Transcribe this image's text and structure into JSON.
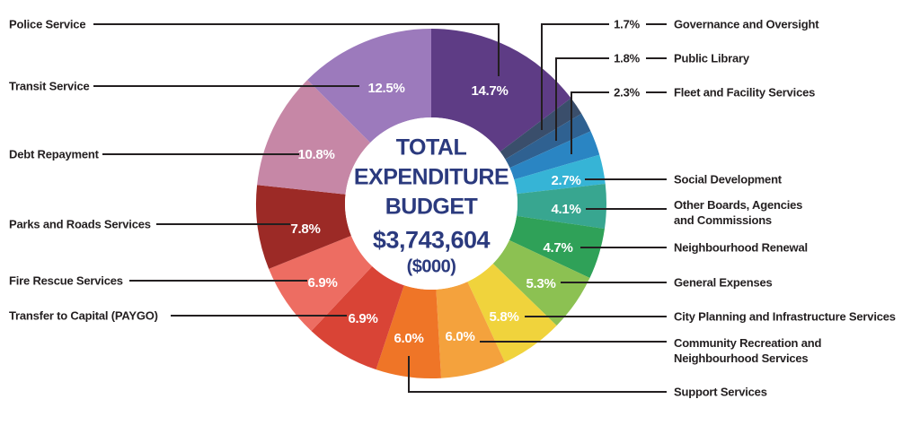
{
  "colors": {
    "background": "#FFFFFF",
    "leader_line": "#231F20",
    "label_text": "#231F20",
    "center_text": "#2B3A7E",
    "inner_pct_text": "#FFFFFF"
  },
  "center": {
    "title_lines": [
      "TOTAL",
      "EXPENDITURE",
      "BUDGET"
    ],
    "amount": "$3,743,604",
    "unit": "($000)"
  },
  "chart_data": {
    "type": "pie",
    "subtype": "donut",
    "direction": "clockwise",
    "start_angle_deg": 0,
    "title": "TOTAL EXPENDITURE BUDGET",
    "total": "$3,743,604",
    "unit": "($000)",
    "slices": [
      {
        "label": "Police Service",
        "value": 14.7,
        "display": "14.7%",
        "color": "#5E3C85"
      },
      {
        "label": "Governance and Oversight",
        "value": 1.7,
        "display": "1.7%",
        "color": "#3A4E6B"
      },
      {
        "label": "Public Library",
        "value": 1.8,
        "display": "1.8%",
        "color": "#2F6191"
      },
      {
        "label": "Fleet and Facility Services",
        "value": 2.3,
        "display": "2.3%",
        "color": "#2A85C3"
      },
      {
        "label": "Social Development",
        "value": 2.7,
        "display": "2.7%",
        "color": "#36B4D6"
      },
      {
        "label": "Other Boards, Agencies and Commissions",
        "label_display": "Other Boards, Agencies\nand Commissions",
        "value": 4.1,
        "display": "4.1%",
        "color": "#38A690"
      },
      {
        "label": "Neighbourhood Renewal",
        "value": 4.7,
        "display": "4.7%",
        "color": "#2FA158"
      },
      {
        "label": "General Expenses",
        "value": 5.3,
        "display": "5.3%",
        "color": "#8CC152"
      },
      {
        "label": "City Planning and Infrastructure Services",
        "value": 5.8,
        "display": "5.8%",
        "color": "#F0D33C"
      },
      {
        "label": "Community Recreation and Neighbourhood Services",
        "label_display": "Community Recreation and\nNeighbourhood Services",
        "value": 6.0,
        "display": "6.0%",
        "color": "#F4A23D"
      },
      {
        "label": "Support Services",
        "value": 6.0,
        "display": "6.0%",
        "color": "#EF7527"
      },
      {
        "label": "Transfer to Capital (PAYGO)",
        "value": 6.9,
        "display": "6.9%",
        "color": "#D94436"
      },
      {
        "label": "Fire Rescue Services",
        "value": 6.9,
        "display": "6.9%",
        "color": "#ED6D62"
      },
      {
        "label": "Parks and Roads Services",
        "value": 7.8,
        "display": "7.8%",
        "color": "#9C2A26"
      },
      {
        "label": "Debt Repayment",
        "value": 10.8,
        "display": "10.8%",
        "color": "#C687A6"
      },
      {
        "label": "Transit Service",
        "value": 12.5,
        "display": "12.5%",
        "color": "#9C7ABC"
      }
    ]
  }
}
